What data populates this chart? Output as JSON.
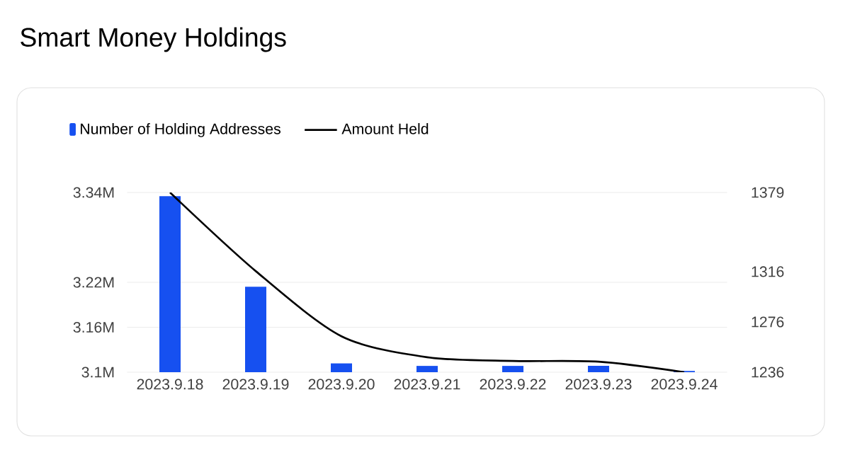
{
  "chart_data": {
    "type": "bar",
    "title": "Smart Money Holdings",
    "categories": [
      "2023.9.18",
      "2023.9.19",
      "2023.9.20",
      "2023.9.21",
      "2023.9.22",
      "2023.9.23",
      "2023.9.24"
    ],
    "series": [
      {
        "name": "Number of Holding Addresses",
        "axis": "y2",
        "color": "#1650f0",
        "values": [
          1376,
          1304,
          1243,
          1241,
          1241,
          1241,
          1237
        ]
      },
      {
        "name": "Amount Held",
        "type": "line",
        "color": "#000000",
        "values": [
          3.34,
          3.235,
          3.148,
          3.12,
          3.115,
          3.114,
          3.1
        ]
      }
    ],
    "ylim": [
      3.1,
      3.34
    ],
    "yticks": [
      {
        "value": 3.1,
        "label": "3.1M"
      },
      {
        "value": 3.16,
        "label": "3.16M"
      },
      {
        "value": 3.22,
        "label": "3.22M"
      },
      {
        "value": 3.34,
        "label": "3.34M"
      }
    ],
    "y2lim": [
      1236,
      1379
    ],
    "y2ticks": [
      1236,
      1276,
      1316,
      1379
    ],
    "grid": "y",
    "legend": "top left",
    "marker": "none",
    "line_style": "solid"
  }
}
